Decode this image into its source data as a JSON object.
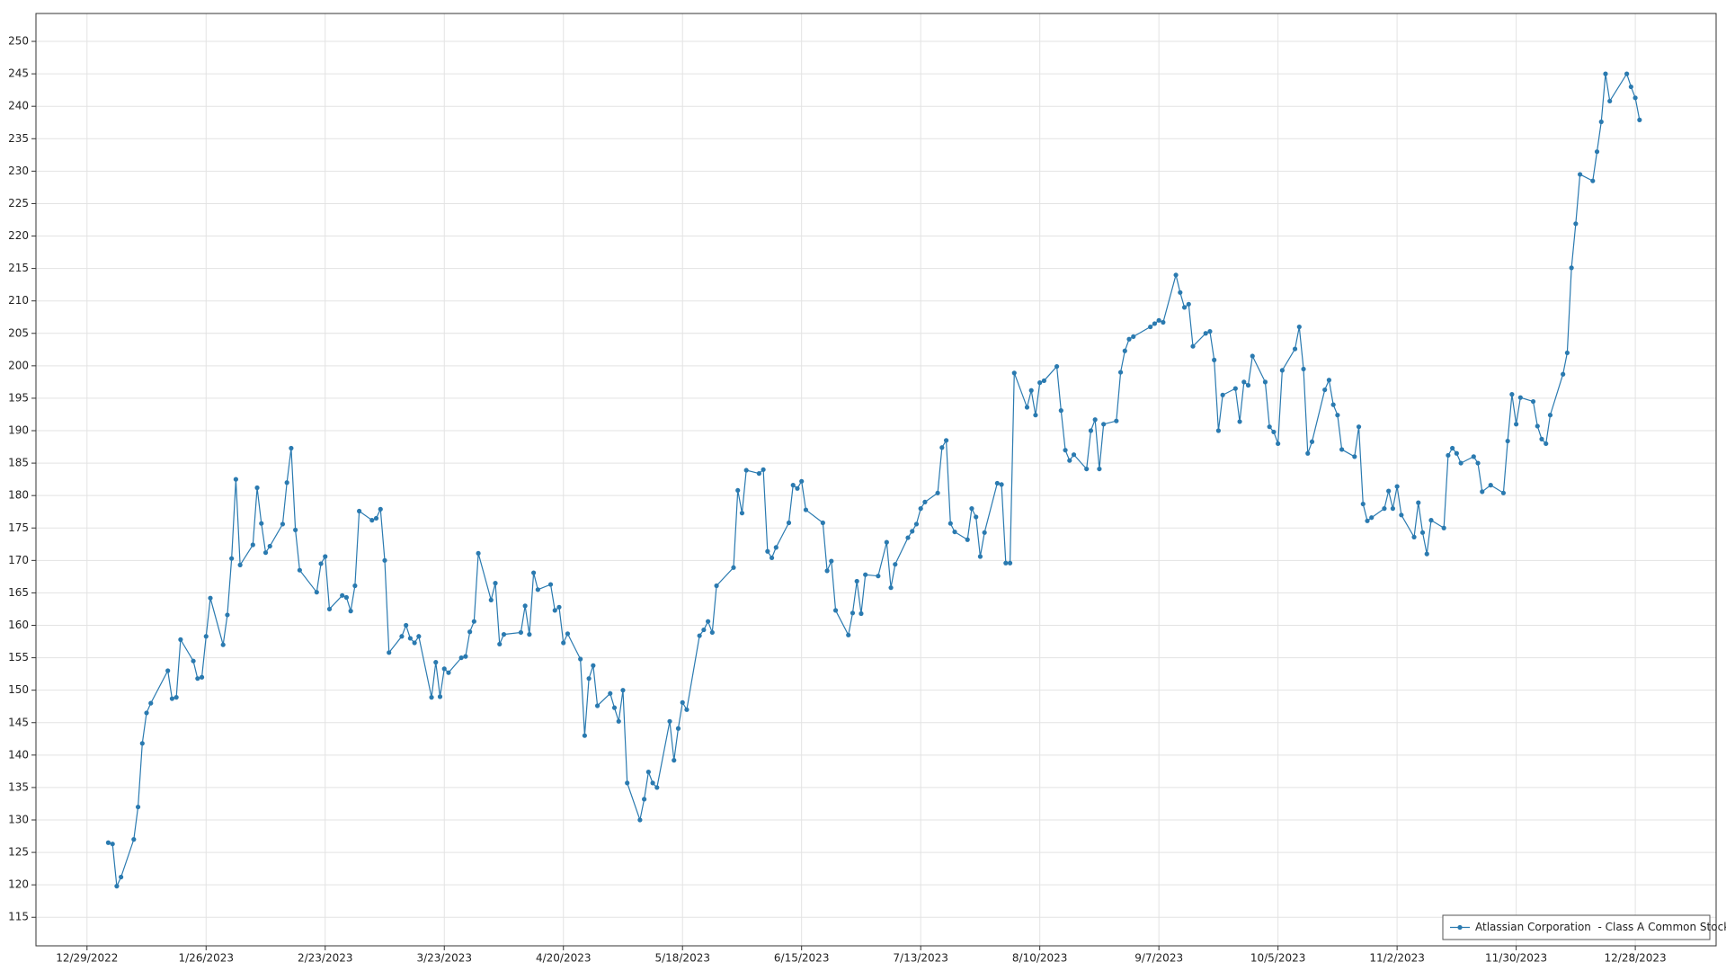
{
  "chart_data": {
    "type": "line",
    "x": [
      "2023-01-03",
      "2023-01-04",
      "2023-01-05",
      "2023-01-06",
      "2023-01-09",
      "2023-01-10",
      "2023-01-11",
      "2023-01-12",
      "2023-01-13",
      "2023-01-17",
      "2023-01-18",
      "2023-01-19",
      "2023-01-20",
      "2023-01-23",
      "2023-01-24",
      "2023-01-25",
      "2023-01-26",
      "2023-01-27",
      "2023-01-30",
      "2023-01-31",
      "2023-02-01",
      "2023-02-02",
      "2023-02-03",
      "2023-02-06",
      "2023-02-07",
      "2023-02-08",
      "2023-02-09",
      "2023-02-10",
      "2023-02-13",
      "2023-02-14",
      "2023-02-15",
      "2023-02-16",
      "2023-02-17",
      "2023-02-21",
      "2023-02-22",
      "2023-02-23",
      "2023-02-24",
      "2023-02-27",
      "2023-02-28",
      "2023-03-01",
      "2023-03-02",
      "2023-03-03",
      "2023-03-06",
      "2023-03-07",
      "2023-03-08",
      "2023-03-09",
      "2023-03-10",
      "2023-03-13",
      "2023-03-14",
      "2023-03-15",
      "2023-03-16",
      "2023-03-17",
      "2023-03-20",
      "2023-03-21",
      "2023-03-22",
      "2023-03-23",
      "2023-03-24",
      "2023-03-27",
      "2023-03-28",
      "2023-03-29",
      "2023-03-30",
      "2023-03-31",
      "2023-04-03",
      "2023-04-04",
      "2023-04-05",
      "2023-04-06",
      "2023-04-10",
      "2023-04-11",
      "2023-04-12",
      "2023-04-13",
      "2023-04-14",
      "2023-04-17",
      "2023-04-18",
      "2023-04-19",
      "2023-04-20",
      "2023-04-21",
      "2023-04-24",
      "2023-04-25",
      "2023-04-26",
      "2023-04-27",
      "2023-04-28",
      "2023-05-01",
      "2023-05-02",
      "2023-05-03",
      "2023-05-04",
      "2023-05-05",
      "2023-05-08",
      "2023-05-09",
      "2023-05-10",
      "2023-05-11",
      "2023-05-12",
      "2023-05-15",
      "2023-05-16",
      "2023-05-17",
      "2023-05-18",
      "2023-05-19",
      "2023-05-22",
      "2023-05-23",
      "2023-05-24",
      "2023-05-25",
      "2023-05-26",
      "2023-05-30",
      "2023-05-31",
      "2023-06-01",
      "2023-06-02",
      "2023-06-05",
      "2023-06-06",
      "2023-06-07",
      "2023-06-08",
      "2023-06-09",
      "2023-06-12",
      "2023-06-13",
      "2023-06-14",
      "2023-06-15",
      "2023-06-16",
      "2023-06-20",
      "2023-06-21",
      "2023-06-22",
      "2023-06-23",
      "2023-06-26",
      "2023-06-27",
      "2023-06-28",
      "2023-06-29",
      "2023-06-30",
      "2023-07-03",
      "2023-07-05",
      "2023-07-06",
      "2023-07-07",
      "2023-07-10",
      "2023-07-11",
      "2023-07-12",
      "2023-07-13",
      "2023-07-14",
      "2023-07-17",
      "2023-07-18",
      "2023-07-19",
      "2023-07-20",
      "2023-07-21",
      "2023-07-24",
      "2023-07-25",
      "2023-07-26",
      "2023-07-27",
      "2023-07-28",
      "2023-07-31",
      "2023-08-01",
      "2023-08-02",
      "2023-08-03",
      "2023-08-04",
      "2023-08-07",
      "2023-08-08",
      "2023-08-09",
      "2023-08-10",
      "2023-08-11",
      "2023-08-14",
      "2023-08-15",
      "2023-08-16",
      "2023-08-17",
      "2023-08-18",
      "2023-08-21",
      "2023-08-22",
      "2023-08-23",
      "2023-08-24",
      "2023-08-25",
      "2023-08-28",
      "2023-08-29",
      "2023-08-30",
      "2023-08-31",
      "2023-09-01",
      "2023-09-05",
      "2023-09-06",
      "2023-09-07",
      "2023-09-08",
      "2023-09-11",
      "2023-09-12",
      "2023-09-13",
      "2023-09-14",
      "2023-09-15",
      "2023-09-18",
      "2023-09-19",
      "2023-09-20",
      "2023-09-21",
      "2023-09-22",
      "2023-09-25",
      "2023-09-26",
      "2023-09-27",
      "2023-09-28",
      "2023-09-29",
      "2023-10-02",
      "2023-10-03",
      "2023-10-04",
      "2023-10-05",
      "2023-10-06",
      "2023-10-09",
      "2023-10-10",
      "2023-10-11",
      "2023-10-12",
      "2023-10-13",
      "2023-10-16",
      "2023-10-17",
      "2023-10-18",
      "2023-10-19",
      "2023-10-20",
      "2023-10-23",
      "2023-10-24",
      "2023-10-25",
      "2023-10-26",
      "2023-10-27",
      "2023-10-30",
      "2023-10-31",
      "2023-11-01",
      "2023-11-02",
      "2023-11-03",
      "2023-11-06",
      "2023-11-07",
      "2023-11-08",
      "2023-11-09",
      "2023-11-10",
      "2023-11-13",
      "2023-11-14",
      "2023-11-15",
      "2023-11-16",
      "2023-11-17",
      "2023-11-20",
      "2023-11-21",
      "2023-11-22",
      "2023-11-24",
      "2023-11-27",
      "2023-11-28",
      "2023-11-29",
      "2023-11-30",
      "2023-12-01",
      "2023-12-04",
      "2023-12-05",
      "2023-12-06",
      "2023-12-07",
      "2023-12-08",
      "2023-12-11",
      "2023-12-12",
      "2023-12-13",
      "2023-12-14",
      "2023-12-15",
      "2023-12-18",
      "2023-12-19",
      "2023-12-20",
      "2023-12-21",
      "2023-12-22",
      "2023-12-26",
      "2023-12-27",
      "2023-12-28",
      "2023-12-29"
    ],
    "series": [
      {
        "name": "Atlassian Corporation  - Class A Common Stock",
        "color": "#2a7ab0",
        "values": [
          126.5,
          126.3,
          119.8,
          121.2,
          127,
          132,
          141.8,
          146.5,
          148,
          153,
          148.7,
          148.9,
          157.8,
          154.5,
          151.8,
          152,
          158.3,
          164.2,
          157,
          161.6,
          170.3,
          182.5,
          169.3,
          172.4,
          181.2,
          175.7,
          171.2,
          172.2,
          175.6,
          182,
          187.3,
          174.7,
          168.5,
          165.1,
          169.5,
          170.6,
          162.5,
          164.6,
          164.3,
          162.2,
          166.1,
          177.6,
          176.2,
          176.5,
          177.9,
          170,
          155.8,
          158.3,
          160,
          158,
          157.3,
          158.3,
          148.9,
          154.3,
          149,
          153.3,
          152.7,
          155,
          155.2,
          159,
          160.6,
          171.1,
          163.9,
          166.5,
          157.1,
          158.6,
          158.9,
          163,
          158.6,
          168.1,
          165.5,
          166.3,
          162.3,
          162.8,
          157.3,
          158.7,
          154.8,
          143,
          151.8,
          153.8,
          147.6,
          149.5,
          147.3,
          145.2,
          150,
          135.7,
          130,
          133.2,
          137.4,
          135.7,
          135,
          145.2,
          139.2,
          144.1,
          148.1,
          147,
          158.4,
          159.3,
          160.6,
          158.9,
          166.1,
          168.9,
          180.8,
          177.3,
          183.9,
          183.4,
          184,
          171.4,
          170.4,
          172,
          175.8,
          181.6,
          181.1,
          182.2,
          177.8,
          175.8,
          168.4,
          169.9,
          162.3,
          158.5,
          161.9,
          166.8,
          161.8,
          167.8,
          167.6,
          172.8,
          165.8,
          169.4,
          173.5,
          174.5,
          175.6,
          178,
          179,
          180.4,
          187.4,
          188.5,
          175.7,
          174.4,
          173.2,
          178,
          176.7,
          170.6,
          174.3,
          181.9,
          181.7,
          169.6,
          169.6,
          198.9,
          193.6,
          196.2,
          192.4,
          197.4,
          197.7,
          199.9,
          193.1,
          187,
          185.4,
          186.3,
          184.1,
          190,
          191.7,
          184.1,
          191,
          191.5,
          199,
          202.3,
          204.1,
          204.5,
          206,
          206.5,
          207,
          206.7,
          214,
          211.3,
          209,
          209.5,
          203,
          205,
          205.3,
          200.9,
          190,
          195.5,
          196.5,
          191.4,
          197.5,
          197,
          201.5,
          197.5,
          190.6,
          189.8,
          188,
          199.3,
          202.6,
          206,
          199.5,
          186.5,
          188.3,
          196.3,
          197.8,
          194,
          192.4,
          187.1,
          186,
          190.6,
          178.7,
          176.1,
          176.6,
          178,
          180.7,
          178,
          181.4,
          177,
          173.6,
          178.9,
          174.3,
          171,
          176.2,
          175,
          186.2,
          187.3,
          186.5,
          185,
          186,
          185,
          180.6,
          181.6,
          180.4,
          188.4,
          195.6,
          191,
          195.1,
          194.5,
          190.7,
          188.7,
          188,
          192.4,
          198.7,
          202,
          215.1,
          221.9,
          229.5,
          228.5,
          233,
          237.6,
          245,
          240.8,
          245,
          243,
          241.3,
          237.9
        ]
      }
    ],
    "xlim": [
      "2022-12-17",
      "2024-01-16"
    ],
    "ylim": [
      110.6,
      254.3
    ],
    "xticks": [
      {
        "value": "2022-12-29",
        "label": "12/29/2022"
      },
      {
        "value": "2023-01-26",
        "label": "1/26/2023"
      },
      {
        "value": "2023-02-23",
        "label": "2/23/2023"
      },
      {
        "value": "2023-03-23",
        "label": "3/23/2023"
      },
      {
        "value": "2023-04-20",
        "label": "4/20/2023"
      },
      {
        "value": "2023-05-18",
        "label": "5/18/2023"
      },
      {
        "value": "2023-06-15",
        "label": "6/15/2023"
      },
      {
        "value": "2023-07-13",
        "label": "7/13/2023"
      },
      {
        "value": "2023-08-10",
        "label": "8/10/2023"
      },
      {
        "value": "2023-09-07",
        "label": "9/7/2023"
      },
      {
        "value": "2023-10-05",
        "label": "10/5/2023"
      },
      {
        "value": "2023-11-02",
        "label": "11/2/2023"
      },
      {
        "value": "2023-11-30",
        "label": "11/30/2023"
      },
      {
        "value": "2023-12-28",
        "label": "12/28/2023"
      }
    ],
    "yticks": [
      115,
      120,
      125,
      130,
      135,
      140,
      145,
      150,
      155,
      160,
      165,
      170,
      175,
      180,
      185,
      190,
      195,
      200,
      205,
      210,
      215,
      220,
      225,
      230,
      235,
      240,
      245,
      250
    ],
    "grid": true,
    "legend": "lower right"
  }
}
